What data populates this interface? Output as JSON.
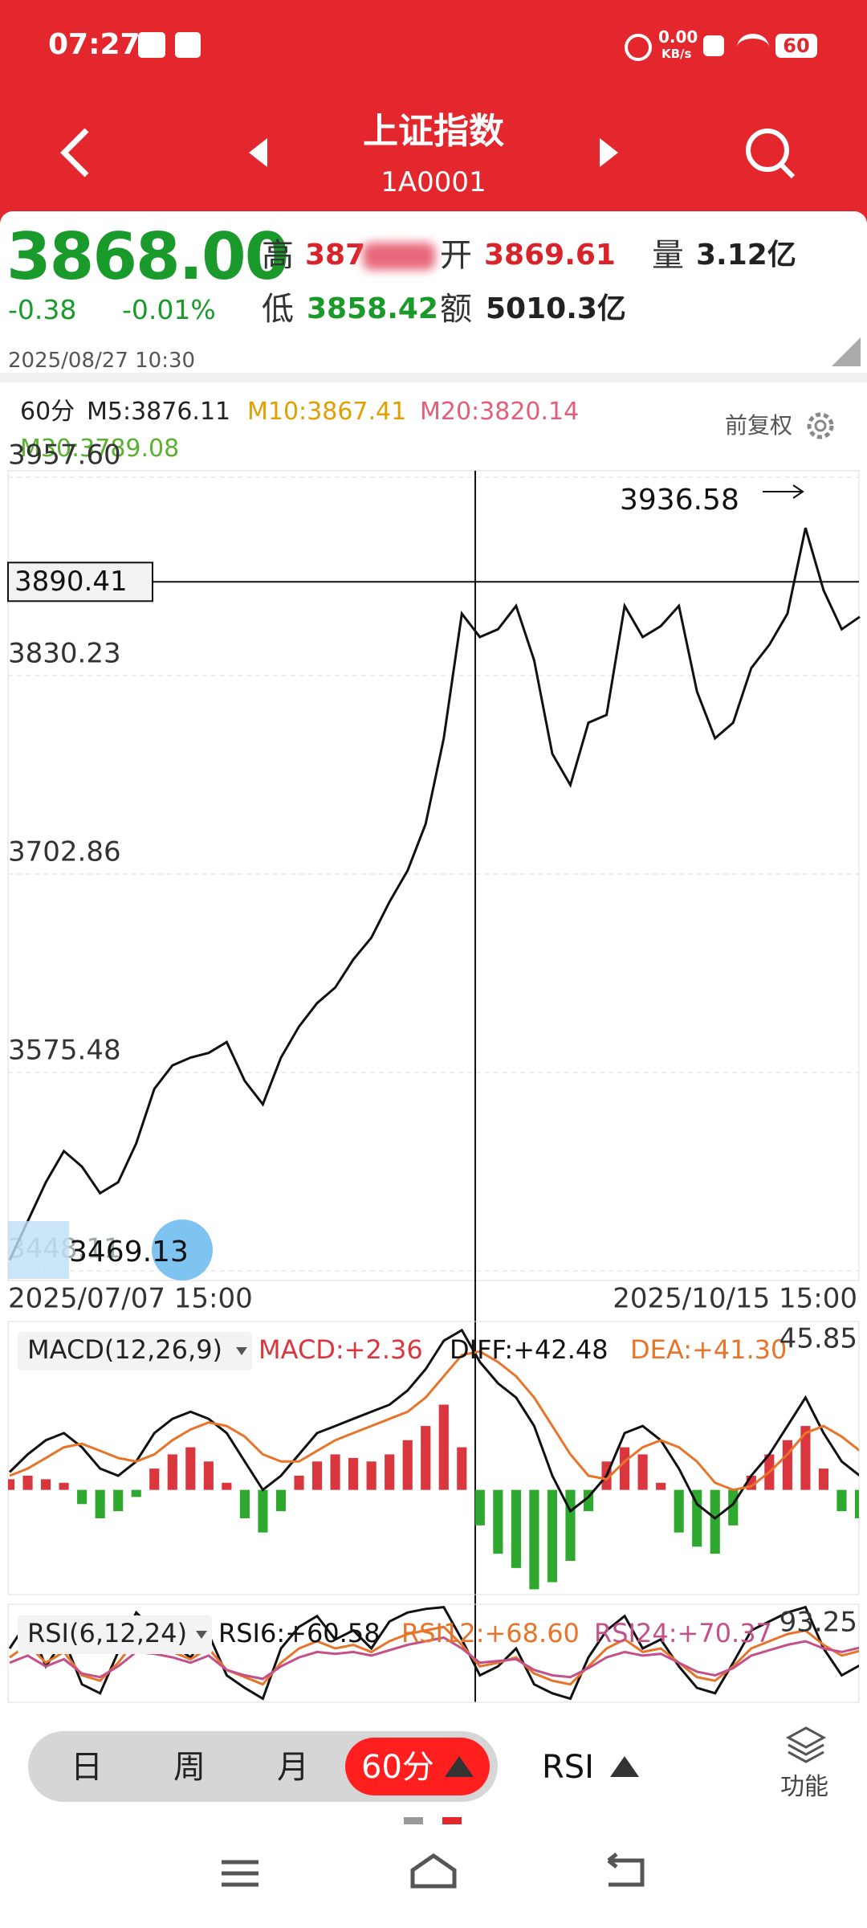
{
  "status_bar": {
    "time": "07:27",
    "net_speed": "0.00",
    "net_unit": "KB/s",
    "battery": "60"
  },
  "header": {
    "title": "上证指数",
    "code": "1A0001"
  },
  "quote": {
    "price": "3868.00",
    "change": "-0.38",
    "change_pct": "-0.01%",
    "high_label": "高",
    "high": "387",
    "open_label": "开",
    "open": "3869.61",
    "volume_label": "量",
    "volume": "3.12亿",
    "low_label": "低",
    "low": "3858.42",
    "amount_label": "额",
    "amount": "5010.3亿",
    "time": "2025/08/27 10:30"
  },
  "indicators": {
    "period": "60分",
    "ma5": "M5:3876.11",
    "ma10": "M10:3867.41",
    "ma20": "M20:3820.14",
    "ma30": "M30:3789.08",
    "adjust": "前复权"
  },
  "chart_data": [
    {
      "type": "line",
      "color": "#111111",
      "ylim": [
        3448.11,
        3957.6
      ],
      "yticks": [
        {
          "value": 3957.6,
          "label": "3957.60"
        },
        3830.23,
        3702.86,
        3575.48,
        3448.11
      ],
      "grid": true,
      "values": [
        3455,
        3480,
        3505,
        3525,
        3515,
        3498,
        3505,
        3530,
        3565,
        3580,
        3585,
        3588,
        3595,
        3570,
        3555,
        3585,
        3605,
        3620,
        3630,
        3648,
        3662,
        3685,
        3705,
        3735,
        3790,
        3870,
        3855,
        3860,
        3875,
        3840,
        3780,
        3760,
        3800,
        3805,
        3875,
        3855,
        3862,
        3875,
        3820,
        3790,
        3800,
        3835,
        3850,
        3870,
        3925,
        3885,
        3860,
        3868
      ],
      "crosshair": 3890.41,
      "max_label": 3936.58,
      "min_label": 3469.13,
      "x_start": "2025/07/07 15:00",
      "x_end": "2025/10/15 15:00"
    },
    {
      "type": "bar",
      "title": "MACD(12,26,9)",
      "ylim": [
        -29.5,
        45.85
      ],
      "series": [
        {
          "name": "MACD:+2.36",
          "color": "#d9363e",
          "neg_color": "#2ea82e",
          "values": [
            3,
            4,
            3,
            2,
            -4,
            -8,
            -6,
            -2,
            6,
            10,
            12,
            8,
            2,
            -8,
            -12,
            -6,
            4,
            8,
            10,
            9,
            8,
            10,
            14,
            18,
            24,
            12,
            -10,
            -18,
            -22,
            -28,
            -26,
            -20,
            -6,
            8,
            12,
            10,
            2,
            -12,
            -16,
            -18,
            -10,
            4,
            10,
            14,
            18,
            6,
            -6,
            -8
          ]
        },
        {
          "name": "DIFF:+42.48",
          "color": "#111111",
          "values": [
            5,
            10,
            14,
            16,
            12,
            6,
            4,
            8,
            16,
            20,
            22,
            20,
            16,
            8,
            0,
            4,
            10,
            16,
            18,
            20,
            22,
            24,
            28,
            34,
            42,
            45,
            36,
            30,
            26,
            18,
            4,
            -6,
            -2,
            4,
            16,
            18,
            14,
            6,
            -4,
            -8,
            -4,
            4,
            10,
            18,
            26,
            16,
            8,
            4
          ]
        },
        {
          "name": "DEA:+41.30",
          "color": "#e8742a",
          "values": [
            4,
            6,
            9,
            12,
            13,
            11,
            9,
            8,
            10,
            14,
            17,
            19,
            18,
            15,
            10,
            8,
            8,
            11,
            14,
            16,
            18,
            20,
            22,
            26,
            32,
            38,
            39,
            36,
            32,
            26,
            18,
            10,
            4,
            3,
            8,
            12,
            14,
            12,
            8,
            2,
            0,
            1,
            5,
            10,
            16,
            18,
            15,
            11
          ]
        }
      ]
    },
    {
      "type": "line",
      "title": "RSI(6,12,24)",
      "ylim": [
        40,
        93.25
      ],
      "series": [
        {
          "name": "RSI6:+60.58",
          "color": "#111111",
          "values": [
            70,
            85,
            60,
            75,
            50,
            45,
            68,
            90,
            80,
            72,
            65,
            78,
            55,
            48,
            42,
            70,
            82,
            88,
            75,
            80,
            70,
            85,
            90,
            92,
            93,
            75,
            55,
            60,
            70,
            50,
            45,
            42,
            65,
            80,
            88,
            70,
            75,
            60,
            48,
            45,
            62,
            80,
            85,
            90,
            93,
            70,
            55,
            60.58
          ]
        },
        {
          "name": "RSI12:+68.60",
          "color": "#e8742a",
          "values": [
            65,
            72,
            62,
            68,
            55,
            52,
            62,
            75,
            72,
            68,
            64,
            70,
            58,
            54,
            50,
            62,
            70,
            74,
            70,
            72,
            68,
            74,
            78,
            80,
            82,
            72,
            60,
            62,
            65,
            56,
            52,
            50,
            60,
            70,
            75,
            68,
            70,
            62,
            54,
            52,
            60,
            70,
            74,
            78,
            80,
            72,
            66,
            68.6
          ]
        },
        {
          "name": "RSI24:+70.37",
          "color": "#c4508a",
          "values": [
            62,
            66,
            60,
            64,
            56,
            54,
            60,
            68,
            67,
            65,
            62,
            66,
            58,
            55,
            53,
            60,
            65,
            68,
            67,
            68,
            66,
            69,
            72,
            74,
            76,
            70,
            62,
            63,
            64,
            58,
            55,
            54,
            59,
            65,
            68,
            66,
            67,
            62,
            57,
            55,
            59,
            66,
            69,
            72,
            74,
            70,
            68,
            70.37
          ]
        }
      ]
    }
  ],
  "tabs": [
    "日",
    "周",
    "月",
    "60分"
  ],
  "indicator_tab": "RSI",
  "menu": "功能"
}
